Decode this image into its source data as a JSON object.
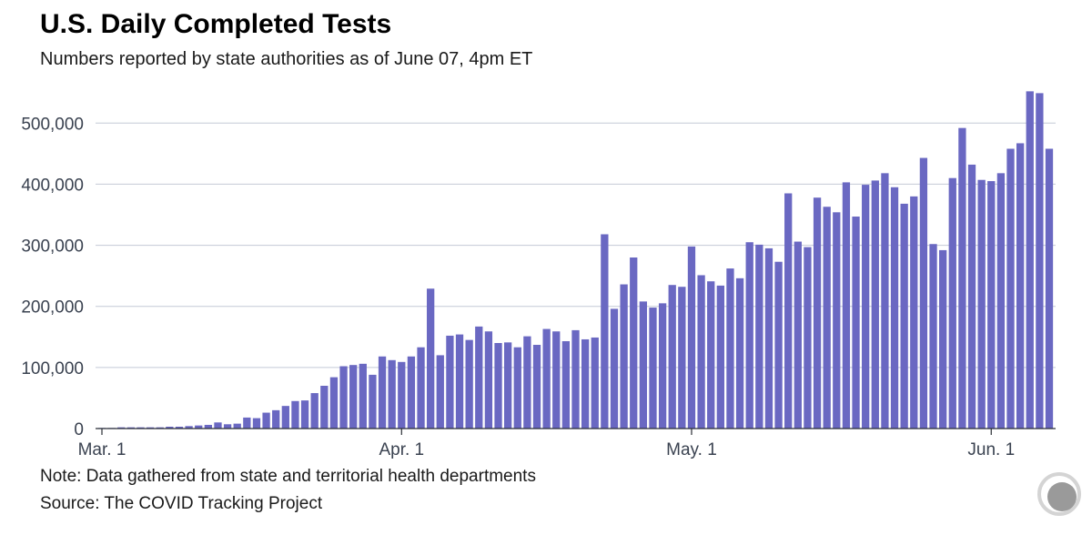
{
  "header": {
    "title": "U.S. Daily Completed Tests",
    "subtitle": "Numbers reported by state authorities as of June 07, 4pm ET"
  },
  "footer": {
    "note": "Note: Data gathered from state and territorial health departments",
    "source": "Source: The COVID Tracking Project"
  },
  "logo": {
    "icon": "covid-tracking-project-logo-icon",
    "colors": [
      "#d4d4d4",
      "#9a9a9a"
    ]
  },
  "chart_data": {
    "type": "bar",
    "title": "U.S. Daily Completed Tests",
    "subtitle": "Numbers reported by state authorities as of June 07, 4pm ET",
    "xlabel": "",
    "ylabel": "",
    "x_range": [
      "2020-03-01",
      "2020-06-07"
    ],
    "x_ticks": [
      {
        "label": "Mar. 1",
        "date": "2020-03-01"
      },
      {
        "label": "Apr. 1",
        "date": "2020-04-01"
      },
      {
        "label": "May. 1",
        "date": "2020-05-01"
      },
      {
        "label": "Jun. 1",
        "date": "2020-06-01"
      }
    ],
    "ylim": [
      0,
      560000
    ],
    "y_ticks": [
      0,
      100000,
      200000,
      300000,
      400000,
      500000
    ],
    "y_tick_labels": [
      "0",
      "100,000",
      "200,000",
      "300,000",
      "400,000",
      "500,000"
    ],
    "grid": true,
    "bar_color": "#6a68c2",
    "grid_color": "#c4cad6",
    "series": [
      {
        "values": [
          1000,
          1000,
          2000,
          2000,
          2000,
          2000,
          2000,
          3000,
          3000,
          4000,
          5000,
          6000,
          10000,
          7000,
          8000,
          18000,
          17000,
          26000,
          30000,
          37000,
          45000,
          46000,
          58000,
          70000,
          84000,
          102000,
          104000,
          106000,
          88000,
          118000,
          112000,
          109000,
          118000,
          133000,
          229000,
          120000,
          152000,
          154000,
          145000,
          167000,
          159000,
          140000,
          141000,
          133000,
          151000,
          137000,
          163000,
          159000,
          143000,
          161000,
          146000,
          149000,
          318000,
          196000,
          236000,
          280000,
          208000,
          198000,
          205000,
          235000,
          232000,
          298000,
          251000,
          241000,
          234000,
          262000,
          246000,
          305000,
          301000,
          295000,
          273000,
          385000,
          306000,
          297000,
          378000,
          363000,
          354000,
          403000,
          347000,
          399000,
          406000,
          418000,
          395000,
          368000,
          380000,
          443000,
          302000,
          292000,
          410000,
          492000,
          432000,
          407000,
          405000,
          418000,
          458000,
          467000,
          552000,
          549000,
          458000
        ]
      }
    ]
  }
}
